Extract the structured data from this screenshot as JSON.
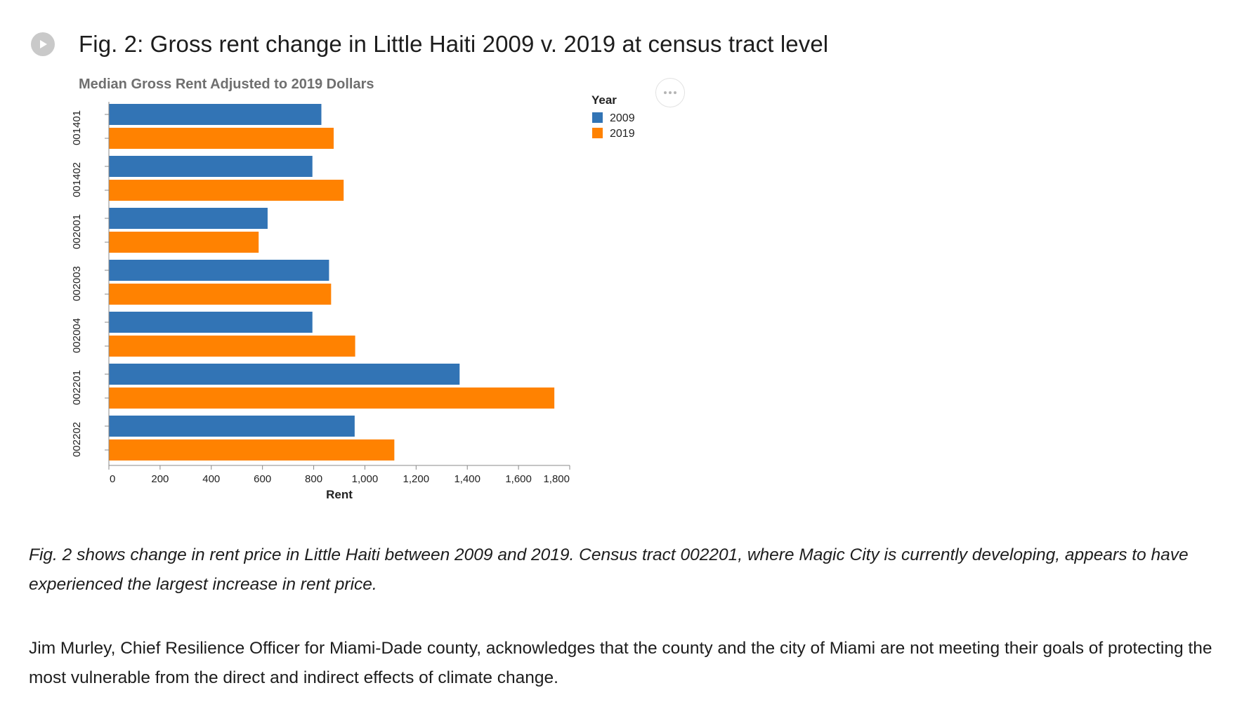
{
  "heading": "Fig. 2: Gross rent change in Little Haiti 2009 v. 2019 at census tract level",
  "icons": {
    "play": "play-circle-icon",
    "menu": "more-horizontal-icon"
  },
  "chart_data": {
    "type": "bar",
    "orientation": "horizontal",
    "title": "Median Gross Rent Adjusted to 2019 Dollars",
    "xlabel": "Rent",
    "ylabel": "",
    "xlim": [
      0,
      1800
    ],
    "x_ticks": [
      0,
      200,
      400,
      600,
      800,
      1000,
      1200,
      1400,
      1600,
      1800
    ],
    "x_tick_labels": [
      "0",
      "200",
      "400",
      "600",
      "800",
      "1,000",
      "1,200",
      "1,400",
      "1,600",
      "1,800"
    ],
    "categories": [
      "001401",
      "001402",
      "002001",
      "002003",
      "002004",
      "002201",
      "002202"
    ],
    "series": [
      {
        "name": "2009",
        "color": "#3274b5",
        "values": [
          830,
          795,
          620,
          860,
          795,
          1370,
          960
        ]
      },
      {
        "name": "2019",
        "color": "#ff8201",
        "values": [
          878,
          917,
          585,
          868,
          962,
          1740,
          1115
        ]
      }
    ],
    "legend": {
      "title": "Year",
      "placement": "right"
    },
    "grid": false
  },
  "body": {
    "paragraph_1": "Fig. 2 shows change in rent price in Little Haiti between 2009 and 2019. Census tract 002201, where Magic City is currently developing, appears to have experienced the largest increase in rent price.",
    "paragraph_2": "Jim Murley, Chief Resilience Officer for Miami-Dade county, acknowledges that the county and the city of Miami are not meeting their goals of protecting the most vulnerable from the direct and indirect effects of climate change."
  }
}
